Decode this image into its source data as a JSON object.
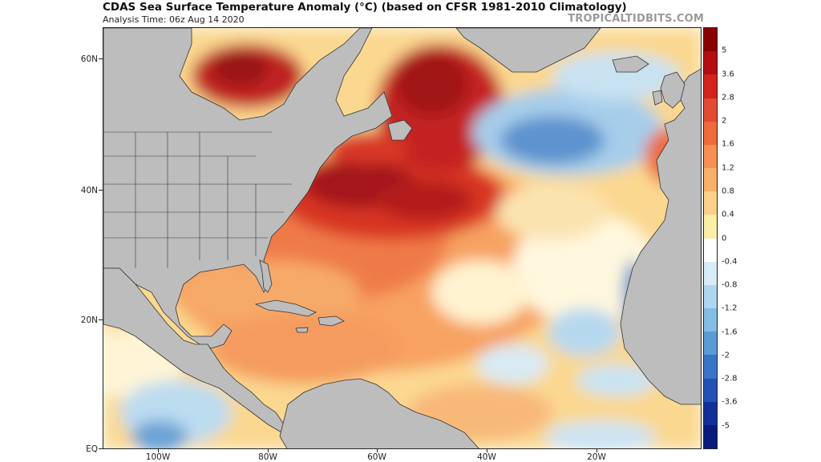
{
  "title": "CDAS Sea Surface Temperature Anomaly (°C) (based on CFSR 1981-2010 Climatology)",
  "subtitle": "Analysis Time: 06z Aug 14 2020",
  "watermark": "TROPICALTIDBITS.COM",
  "map": {
    "lat_labels": [
      "60N",
      "40N",
      "20N",
      "EQ"
    ],
    "lon_labels": [
      "100W",
      "80W",
      "60W",
      "40W",
      "20W"
    ],
    "land_color": "#bdbdbd",
    "border_color": "#333333"
  },
  "colorbar": {
    "labels": [
      "5",
      "3.6",
      "2.8",
      "2",
      "1.6",
      "1.2",
      "0.8",
      "0.4",
      "0",
      "-0.4",
      "-0.8",
      "-1.2",
      "-1.6",
      "-2",
      "-2.8",
      "-3.6",
      "-5"
    ],
    "colors": [
      "#8b0000",
      "#b30f12",
      "#d2231d",
      "#e34a33",
      "#f06a3c",
      "#f58f53",
      "#f9b068",
      "#fbd08a",
      "#fbeea8",
      "#ffffff",
      "#d7ecf6",
      "#aed6ee",
      "#83bde3",
      "#5a9bd6",
      "#3a74c6",
      "#2250b3",
      "#12309a",
      "#081a7a"
    ]
  }
}
